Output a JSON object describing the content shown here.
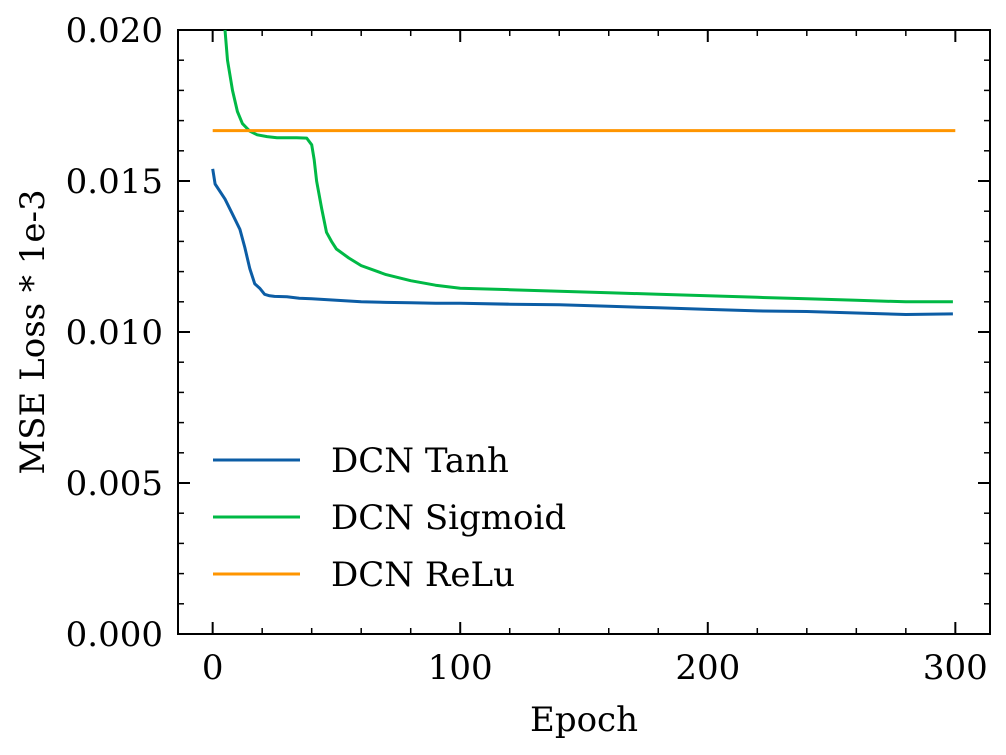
{
  "chart_data": {
    "type": "line",
    "title": "",
    "xlabel": "Epoch",
    "ylabel": "MSE Loss * 1e-3",
    "xlim": [
      -14,
      314
    ],
    "ylim": [
      0.0,
      0.02
    ],
    "xticks": [
      0,
      100,
      200,
      300
    ],
    "xtick_labels": [
      "0",
      "100",
      "200",
      "300"
    ],
    "yticks": [
      0.0,
      0.005,
      0.01,
      0.015,
      0.02
    ],
    "ytick_labels": [
      "0.000",
      "0.005",
      "0.010",
      "0.015",
      "0.020"
    ],
    "grid": false,
    "legend_position": "lower-left",
    "series": [
      {
        "name": "DCN Tanh",
        "color": "#0C5DA5",
        "x": [
          0,
          1,
          5,
          8,
          11,
          13,
          15,
          17,
          19,
          21,
          23,
          25,
          30,
          35,
          40,
          50,
          60,
          70,
          80,
          90,
          100,
          120,
          140,
          160,
          180,
          200,
          220,
          240,
          260,
          280,
          299
        ],
        "y": [
          0.0154,
          0.0149,
          0.0144,
          0.0139,
          0.0134,
          0.0128,
          0.0121,
          0.0116,
          0.01145,
          0.01125,
          0.0112,
          0.01118,
          0.01117,
          0.01112,
          0.0111,
          0.01105,
          0.011,
          0.01098,
          0.01097,
          0.01095,
          0.01095,
          0.01092,
          0.0109,
          0.01085,
          0.0108,
          0.01075,
          0.0107,
          0.01068,
          0.01063,
          0.01058,
          0.0106
        ]
      },
      {
        "name": "DCN Sigmoid",
        "color": "#00B945",
        "x": [
          5,
          6,
          8,
          10,
          12,
          15,
          18,
          22,
          26,
          30,
          34,
          38,
          40,
          41,
          42,
          44,
          46,
          48,
          50,
          55,
          60,
          70,
          80,
          90,
          100,
          120,
          140,
          160,
          180,
          200,
          220,
          240,
          260,
          280,
          299
        ],
        "y": [
          0.0201,
          0.019,
          0.018,
          0.0173,
          0.0169,
          0.01665,
          0.01653,
          0.01647,
          0.01643,
          0.01643,
          0.01643,
          0.01642,
          0.0162,
          0.0157,
          0.015,
          0.0141,
          0.0133,
          0.013,
          0.01275,
          0.01245,
          0.0122,
          0.0119,
          0.0117,
          0.01155,
          0.01145,
          0.0114,
          0.01135,
          0.0113,
          0.01125,
          0.0112,
          0.01115,
          0.0111,
          0.01105,
          0.011,
          0.011
        ]
      },
      {
        "name": "DCN ReLu",
        "color": "#FF9500",
        "x": [
          0,
          300
        ],
        "y": [
          0.01667,
          0.01667
        ]
      }
    ]
  }
}
